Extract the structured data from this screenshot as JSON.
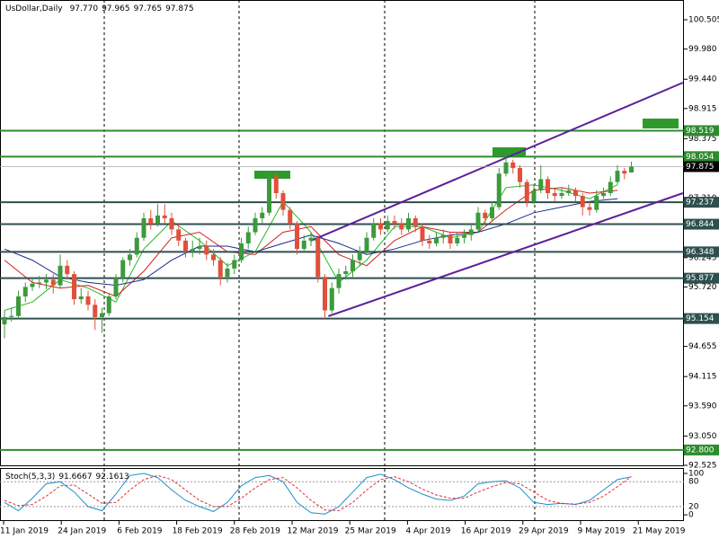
{
  "chart_data": {
    "type": "candlestick",
    "symbol": "UsDollar,Daily",
    "ohlc_text": [
      "97.770",
      "97.965",
      "97.765",
      "97.875"
    ],
    "ylim": [
      92.509,
      100.859
    ],
    "yticks": [
      100.505,
      {
        "value": 99.98,
        "label": "99.980"
      },
      {
        "value": 99.44,
        "label": "99.440"
      },
      98.915,
      98.375,
      {
        "value": 97.85,
        "label": "97.850"
      },
      {
        "value": 97.31,
        "label": "97.310"
      },
      96.785,
      96.245,
      {
        "value": 95.72,
        "label": "95.720"
      },
      {
        "value": 95.18,
        "label": "95.180"
      },
      94.655,
      94.115,
      {
        "value": 93.59,
        "label": "93.590"
      },
      {
        "value": 93.05,
        "label": "93.050"
      },
      92.525
    ],
    "levels": [
      {
        "value": 98.519,
        "color": "#2e8b2e"
      },
      {
        "value": 98.054,
        "color": "#2e8b2e"
      },
      {
        "value": 97.237,
        "color": "#2f4f4f"
      },
      {
        "value": 96.844,
        "color": "#2f4f4f"
      },
      {
        "value": 96.348,
        "color": "#2f4f4f"
      },
      {
        "value": 95.877,
        "color": "#2f4f4f"
      },
      {
        "value": 95.154,
        "color": "#2f4f4f"
      },
      {
        "value": 92.8,
        "label": "92.800",
        "color": "#2e8b2e"
      }
    ],
    "current_price": 97.875,
    "dates": [
      "11 Jan 2019",
      "24 Jan 2019",
      "6 Feb 2019",
      "18 Feb 2019",
      "28 Feb 2019",
      "12 Mar 2019",
      "25 Mar 2019",
      "4 Apr 2019",
      "16 Apr 2019",
      "29 Apr 2019",
      "9 May 2019",
      "21 May 2019"
    ],
    "up_color": "#3c9a3c",
    "down_color": "#e0503a",
    "candles": [
      [
        95.05,
        95.3,
        94.8,
        95.18
      ],
      [
        95.18,
        95.35,
        95.1,
        95.2
      ],
      [
        95.2,
        95.65,
        95.15,
        95.55
      ],
      [
        95.55,
        95.8,
        95.45,
        95.72
      ],
      [
        95.72,
        95.9,
        95.65,
        95.78
      ],
      [
        95.78,
        95.92,
        95.7,
        95.8
      ],
      [
        95.8,
        95.95,
        95.68,
        95.85
      ],
      [
        95.85,
        95.95,
        95.6,
        95.75
      ],
      [
        95.75,
        96.3,
        95.7,
        96.1
      ],
      [
        96.1,
        96.2,
        95.85,
        95.95
      ],
      [
        95.95,
        96.0,
        95.4,
        95.5
      ],
      [
        95.5,
        95.7,
        95.42,
        95.55
      ],
      [
        95.55,
        95.65,
        95.3,
        95.4
      ],
      [
        95.4,
        95.5,
        94.95,
        95.18
      ],
      [
        95.18,
        95.35,
        94.9,
        95.25
      ],
      [
        95.25,
        95.6,
        95.2,
        95.55
      ],
      [
        95.55,
        95.95,
        95.5,
        95.88
      ],
      [
        95.88,
        96.25,
        95.8,
        96.2
      ],
      [
        96.2,
        96.4,
        96.1,
        96.3
      ],
      [
        96.3,
        96.7,
        96.25,
        96.6
      ],
      [
        96.6,
        97.05,
        96.55,
        96.95
      ],
      [
        96.95,
        97.1,
        96.75,
        96.85
      ],
      [
        96.85,
        97.2,
        96.8,
        97.0
      ],
      [
        97.0,
        97.2,
        96.85,
        96.95
      ],
      [
        96.95,
        97.05,
        96.65,
        96.75
      ],
      [
        96.75,
        96.85,
        96.45,
        96.55
      ],
      [
        96.55,
        96.6,
        96.25,
        96.35
      ],
      [
        96.35,
        96.55,
        96.25,
        96.4
      ],
      [
        96.4,
        96.6,
        96.3,
        96.45
      ],
      [
        96.45,
        96.55,
        96.2,
        96.3
      ],
      [
        96.3,
        96.4,
        96.1,
        96.2
      ],
      [
        96.2,
        96.25,
        95.75,
        95.9
      ],
      [
        95.9,
        96.15,
        95.8,
        96.05
      ],
      [
        96.05,
        96.3,
        95.95,
        96.2
      ],
      [
        96.2,
        96.6,
        96.15,
        96.5
      ],
      [
        96.5,
        96.8,
        96.4,
        96.7
      ],
      [
        96.7,
        97.05,
        96.65,
        96.95
      ],
      [
        96.95,
        97.15,
        96.85,
        97.05
      ],
      [
        97.05,
        97.8,
        97.0,
        97.7
      ],
      [
        97.7,
        97.75,
        97.3,
        97.4
      ],
      [
        97.4,
        97.45,
        97.0,
        97.1
      ],
      [
        97.1,
        97.15,
        96.75,
        96.85
      ],
      [
        96.85,
        96.9,
        96.3,
        96.4
      ],
      [
        96.4,
        96.65,
        96.35,
        96.55
      ],
      [
        96.55,
        96.7,
        96.45,
        96.6
      ],
      [
        96.6,
        96.65,
        95.8,
        95.9
      ],
      [
        95.9,
        95.95,
        95.15,
        95.3
      ],
      [
        95.3,
        95.8,
        95.25,
        95.7
      ],
      [
        95.7,
        96.05,
        95.6,
        95.95
      ],
      [
        95.95,
        96.1,
        95.85,
        96.0
      ],
      [
        96.0,
        96.3,
        95.9,
        96.2
      ],
      [
        96.2,
        96.45,
        96.1,
        96.35
      ],
      [
        96.35,
        96.7,
        96.3,
        96.6
      ],
      [
        96.6,
        96.95,
        96.55,
        96.85
      ],
      [
        96.85,
        96.95,
        96.65,
        96.75
      ],
      [
        96.75,
        97.0,
        96.7,
        96.9
      ],
      [
        96.9,
        97.0,
        96.75,
        96.85
      ],
      [
        96.85,
        96.95,
        96.65,
        96.75
      ],
      [
        96.75,
        97.05,
        96.7,
        96.95
      ],
      [
        96.95,
        97.0,
        96.7,
        96.8
      ],
      [
        96.8,
        96.85,
        96.45,
        96.55
      ],
      [
        96.55,
        96.65,
        96.4,
        96.5
      ],
      [
        96.5,
        96.7,
        96.45,
        96.6
      ],
      [
        96.6,
        96.75,
        96.5,
        96.65
      ],
      [
        96.65,
        96.7,
        96.4,
        96.5
      ],
      [
        96.5,
        96.7,
        96.45,
        96.6
      ],
      [
        96.6,
        96.75,
        96.5,
        96.65
      ],
      [
        96.65,
        96.85,
        96.55,
        96.75
      ],
      [
        96.75,
        97.15,
        96.7,
        97.05
      ],
      [
        97.05,
        97.1,
        96.85,
        96.95
      ],
      [
        96.95,
        97.25,
        96.9,
        97.15
      ],
      [
        97.15,
        97.85,
        97.1,
        97.75
      ],
      [
        97.75,
        98.05,
        97.7,
        97.95
      ],
      [
        97.95,
        98.0,
        97.75,
        97.85
      ],
      [
        97.85,
        97.9,
        97.5,
        97.6
      ],
      [
        97.6,
        97.65,
        97.15,
        97.25
      ],
      [
        97.25,
        97.55,
        97.2,
        97.45
      ],
      [
        97.45,
        97.9,
        97.4,
        97.65
      ],
      [
        97.65,
        97.7,
        97.3,
        97.4
      ],
      [
        97.4,
        97.5,
        97.25,
        97.35
      ],
      [
        97.35,
        97.5,
        97.3,
        97.4
      ],
      [
        97.4,
        97.55,
        97.35,
        97.45
      ],
      [
        97.45,
        97.5,
        97.25,
        97.35
      ],
      [
        97.35,
        97.4,
        97.0,
        97.15
      ],
      [
        97.15,
        97.25,
        97.0,
        97.1
      ],
      [
        97.1,
        97.45,
        97.05,
        97.35
      ],
      [
        97.35,
        97.5,
        97.3,
        97.4
      ],
      [
        97.4,
        97.7,
        97.35,
        97.6
      ],
      [
        97.6,
        97.9,
        97.55,
        97.8
      ],
      [
        97.8,
        97.85,
        97.65,
        97.75
      ],
      [
        97.77,
        97.965,
        97.765,
        97.875
      ]
    ],
    "moving_averages": [
      {
        "color": "#22bb22",
        "values": [
          95.3,
          95.45,
          95.85,
          95.7,
          95.45,
          96.4,
          96.9,
          96.55,
          96.1,
          96.35,
          97.25,
          96.7,
          95.8,
          96.2,
          96.8,
          96.8,
          96.6,
          96.7,
          97.5,
          97.55,
          97.45,
          97.3,
          97.55
        ]
      },
      {
        "color": "#d42020",
        "values": [
          96.2,
          95.8,
          95.7,
          95.75,
          95.55,
          96.0,
          96.6,
          96.7,
          96.35,
          96.3,
          96.7,
          96.8,
          96.3,
          96.1,
          96.55,
          96.8,
          96.7,
          96.7,
          97.1,
          97.45,
          97.5,
          97.4,
          97.45
        ]
      },
      {
        "color": "#1a2a8a",
        "values": [
          96.4,
          96.2,
          95.9,
          95.8,
          95.75,
          95.85,
          96.2,
          96.45,
          96.45,
          96.35,
          96.5,
          96.65,
          96.5,
          96.3,
          96.4,
          96.55,
          96.65,
          96.7,
          96.85,
          97.05,
          97.15,
          97.25,
          97.3
        ]
      }
    ],
    "trendlines": [
      {
        "color": "#5b1f9b",
        "start": [
          44,
          96.548
        ],
        "end": [
          97.4,
          99.379
        ]
      },
      {
        "color": "#5b1f9b",
        "start": [
          46.5,
          95.196
        ],
        "end": [
          97.4,
          97.4
        ]
      }
    ],
    "stochastic": {
      "title": "Stoch(5,3,3)",
      "ylim": [
        -15,
        113
      ],
      "yticks": [
        100,
        80,
        20,
        0
      ],
      "series": [
        {
          "color": "#1e90c8",
          "values": [
            30,
            10,
            40,
            75,
            80,
            55,
            20,
            10,
            50,
            95,
            100,
            90,
            60,
            35,
            20,
            8,
            30,
            70,
            90,
            95,
            80,
            30,
            5,
            2,
            20,
            55,
            90,
            98,
            85,
            65,
            50,
            38,
            35,
            45,
            75,
            80,
            82,
            65,
            30,
            25,
            28,
            25,
            35,
            60,
            85,
            91.6667
          ]
        },
        {
          "color": "#e0303a",
          "values": [
            35,
            22,
            25,
            45,
            70,
            72,
            50,
            28,
            30,
            60,
            85,
            95,
            85,
            60,
            35,
            20,
            20,
            40,
            65,
            85,
            90,
            65,
            35,
            12,
            10,
            30,
            60,
            85,
            92,
            80,
            62,
            48,
            40,
            40,
            55,
            68,
            78,
            75,
            55,
            35,
            27,
            26,
            30,
            45,
            68,
            92.1613
          ]
        }
      ]
    }
  }
}
